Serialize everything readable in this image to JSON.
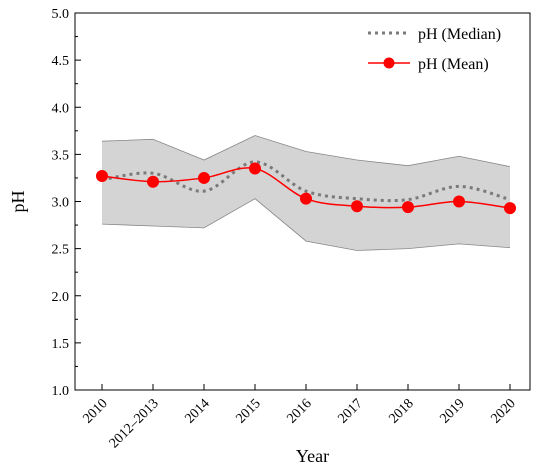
{
  "chart_data": {
    "type": "line",
    "title": "",
    "xlabel": "Year",
    "ylabel": "pH",
    "categories": [
      "2010",
      "2012–2013",
      "2014",
      "2015",
      "2016",
      "2017",
      "2018",
      "2019",
      "2020"
    ],
    "ylim": [
      1.0,
      5.0
    ],
    "yticks": [
      "1.0",
      "1.5",
      "2.0",
      "2.5",
      "3.0",
      "3.5",
      "4.0",
      "4.5",
      "5.0"
    ],
    "grid": false,
    "legend_position": "top-right",
    "band": {
      "upper": [
        3.64,
        3.66,
        3.44,
        3.7,
        3.53,
        3.44,
        3.38,
        3.48,
        3.37
      ],
      "lower": [
        2.76,
        2.74,
        2.72,
        3.03,
        2.58,
        2.48,
        2.5,
        2.55,
        2.51
      ],
      "fill_color": "#d4d4d4",
      "edge_color": "#888888"
    },
    "series": [
      {
        "name": "pH (Median)",
        "style": "dotted",
        "color": "#7a7a7a",
        "values": [
          3.23,
          3.3,
          3.11,
          3.42,
          3.11,
          3.03,
          3.02,
          3.16,
          3.02
        ]
      },
      {
        "name": "pH (Mean)",
        "style": "line-marker",
        "color": "#ff0000",
        "values": [
          3.27,
          3.21,
          3.25,
          3.35,
          3.03,
          2.95,
          2.94,
          3.0,
          2.93
        ]
      }
    ]
  }
}
